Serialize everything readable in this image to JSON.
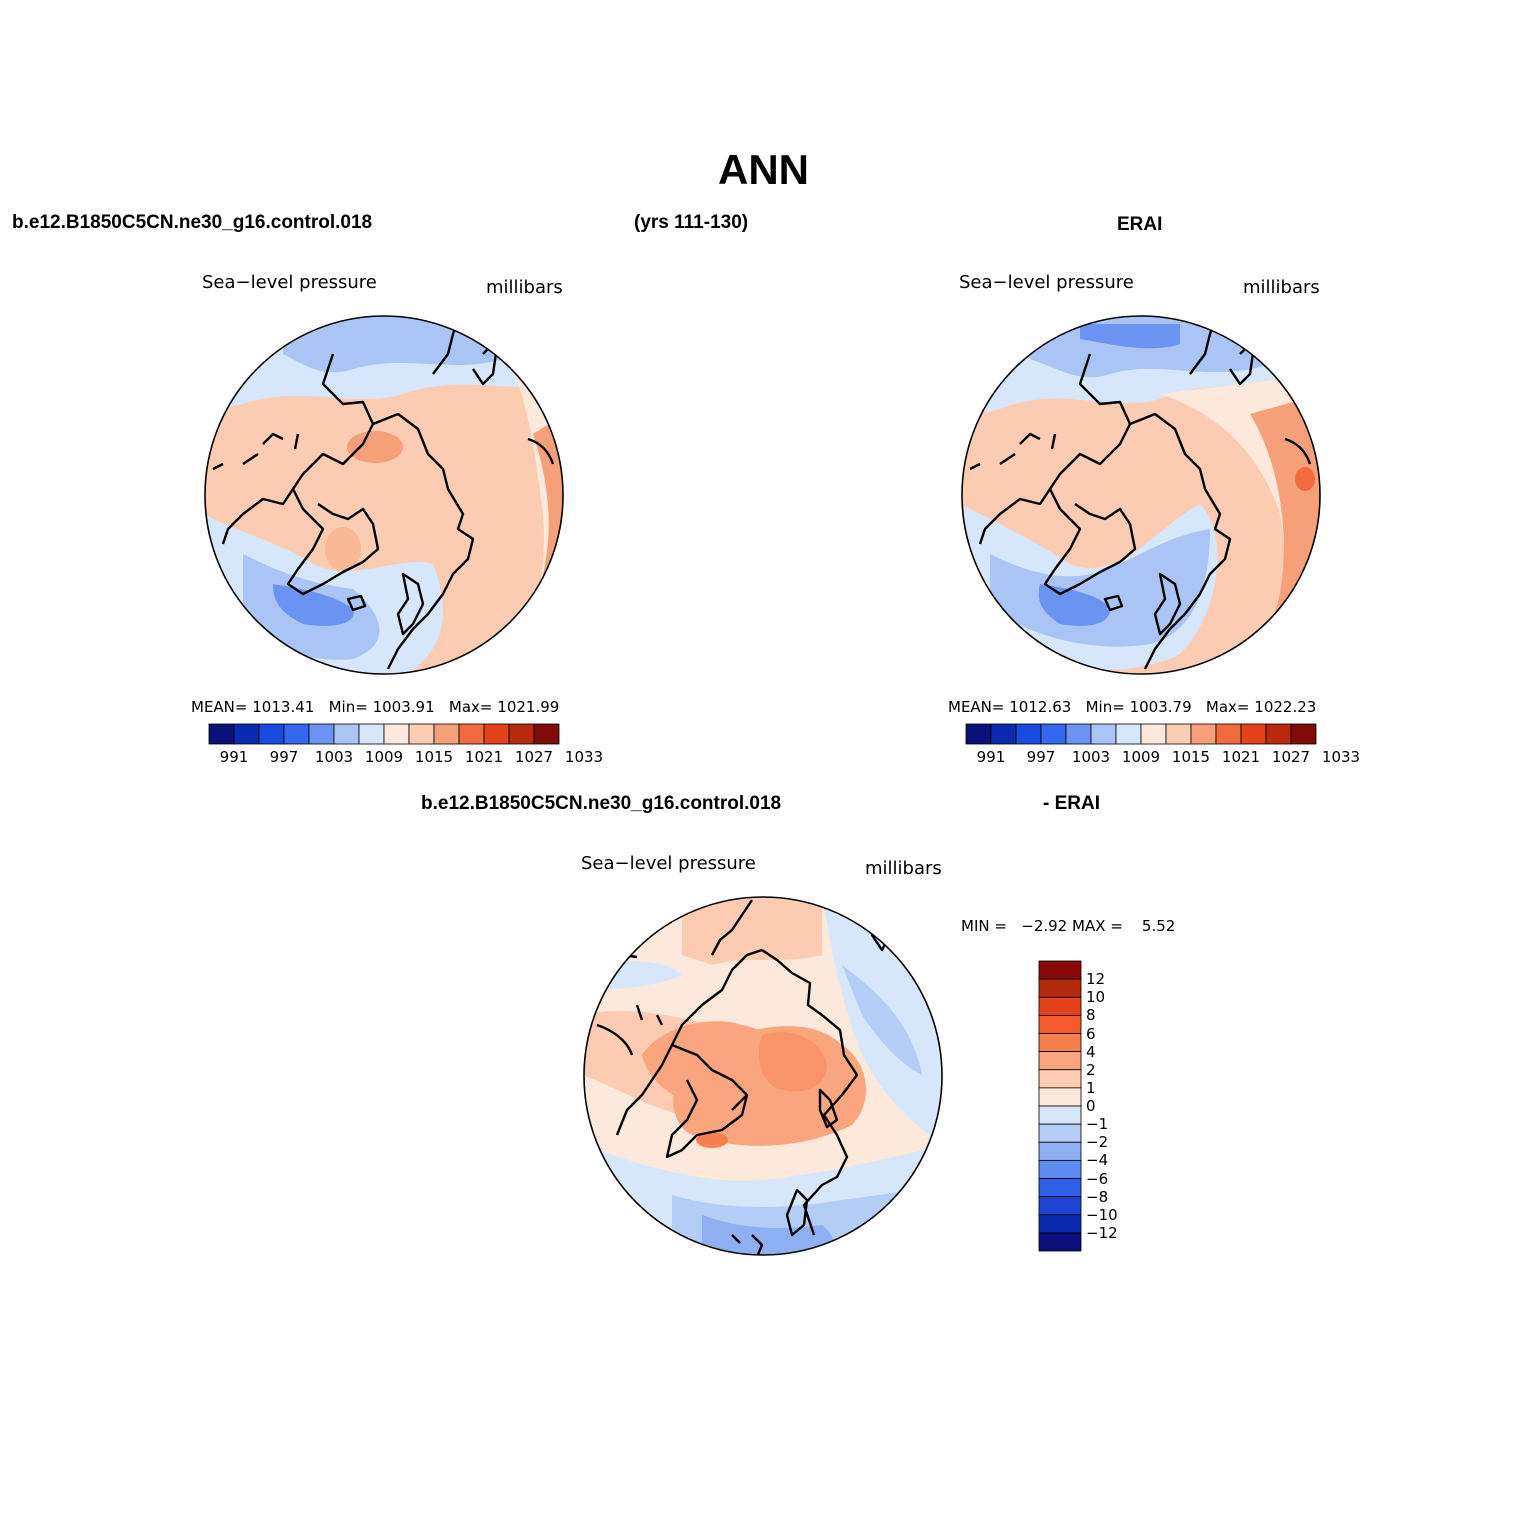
{
  "title": "ANN",
  "header": {
    "case_name": "b.e12.B1850C5CN.ne30_g16.control.018",
    "years": "(yrs 111-130)",
    "obs_name": "ERAI",
    "diff_case": "b.e12.B1850C5CN.ne30_g16.control.018",
    "diff_obs": "- ERAI"
  },
  "panels": [
    {
      "id": "model",
      "variable": "Sea−level pressure",
      "units": "millibars",
      "stats": {
        "mean_label": "MEAN=",
        "mean": "1013.41",
        "min_label": "Min=",
        "min": "1003.91",
        "max_label": "Max=",
        "max": "1021.99"
      }
    },
    {
      "id": "obs",
      "variable": "Sea−level pressure",
      "units": "millibars",
      "stats": {
        "mean_label": "MEAN=",
        "mean": "1012.63",
        "min_label": "Min=",
        "min": "1003.79",
        "max_label": "Max=",
        "max": "1022.23"
      }
    },
    {
      "id": "diff",
      "variable": "Sea−level pressure",
      "units": "millibars",
      "stats": {
        "min_label": "MIN =",
        "min": "−2.92",
        "max_label": "MAX =",
        "max": "5.52"
      }
    }
  ],
  "colorbars": {
    "abs_colors": [
      "#0b0f7a",
      "#0a2bb0",
      "#1a4be0",
      "#3468ef",
      "#6a93f2",
      "#a9c4f5",
      "#d6e6fb",
      "#fde9db",
      "#fbcbb2",
      "#f6a07a",
      "#f36a40",
      "#e3421c",
      "#b82a0e",
      "#7f0c06"
    ],
    "abs_ticks": [
      "991",
      "997",
      "1003",
      "1009",
      "1015",
      "1021",
      "1027",
      "1033"
    ],
    "diff_colors_top_to_bottom": [
      "#870a06",
      "#b42a0d",
      "#e3411a",
      "#f45a2a",
      "#f7804f",
      "#f9a57d",
      "#fccbb0",
      "#fde9db",
      "#d6e6fb",
      "#b3cdf6",
      "#8eb0f3",
      "#5f8bf0",
      "#2f5fe6",
      "#1c44d2",
      "#0a2bb0",
      "#0b0f7a"
    ],
    "diff_ticks": [
      "12",
      "10",
      "8",
      "6",
      "4",
      "2",
      "1",
      "0",
      "−1",
      "−2",
      "−4",
      "−6",
      "−8",
      "−10",
      "−12"
    ]
  }
}
